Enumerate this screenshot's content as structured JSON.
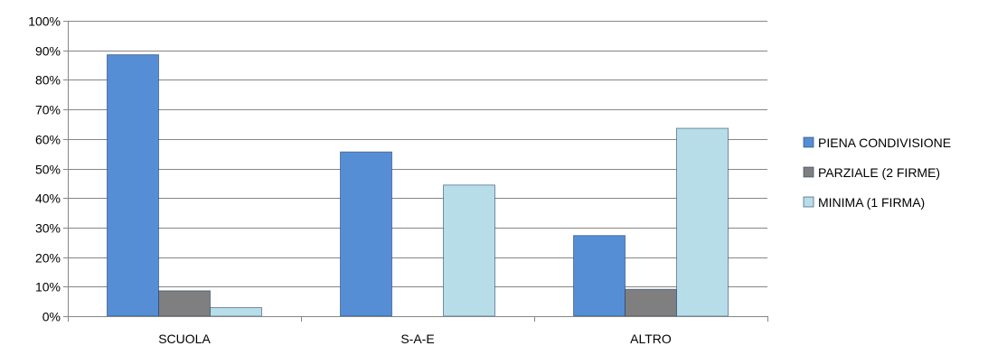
{
  "chart_data": {
    "type": "bar",
    "categories": [
      "SCUOLA",
      "S-A-E",
      "ALTRO"
    ],
    "series": [
      {
        "name": "PIENA CONDIVISIONE",
        "values": [
          88.5,
          55.6,
          27.3
        ],
        "color": "#558ED5"
      },
      {
        "name": "PARZIALE (2 FIRME)",
        "values": [
          8.6,
          0,
          9.1
        ],
        "color": "#7F7F7F"
      },
      {
        "name": "MINIMA (1 FIRMA)",
        "values": [
          2.9,
          44.4,
          63.6
        ],
        "color": "#B7DEE8"
      }
    ],
    "title": "",
    "xlabel": "",
    "ylabel": "",
    "ylim": [
      0,
      100
    ],
    "ytick_values": [
      0,
      10,
      20,
      30,
      40,
      50,
      60,
      70,
      80,
      90,
      100
    ],
    "ytick_labels": [
      "0%",
      "10%",
      "20%",
      "30%",
      "40%",
      "50%",
      "60%",
      "70%",
      "80%",
      "90%",
      "100%"
    ],
    "grid": true,
    "legend_position": "right"
  }
}
